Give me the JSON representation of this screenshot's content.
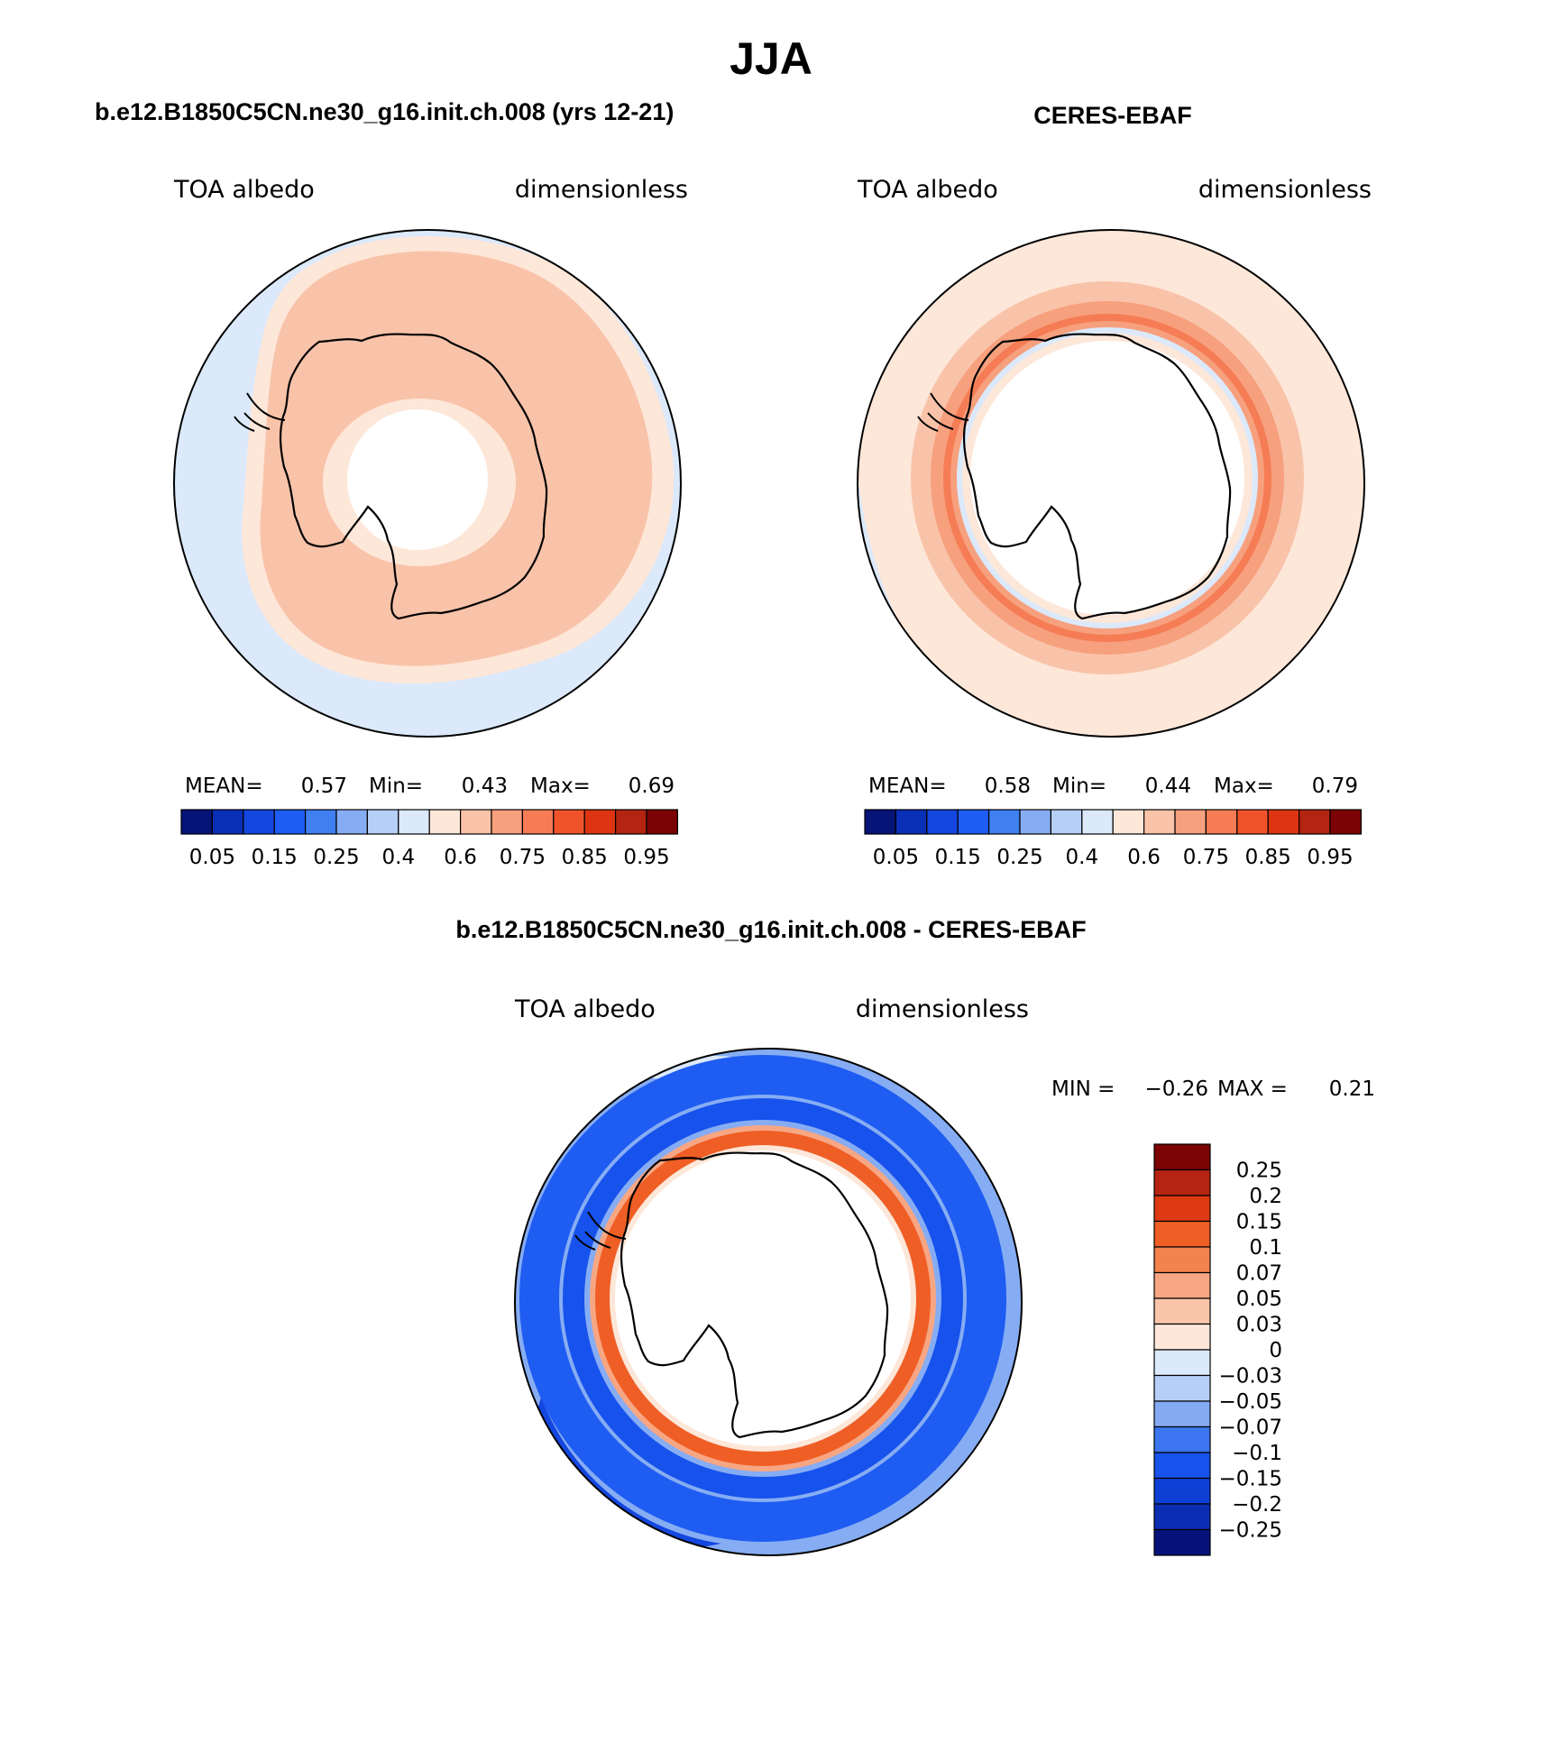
{
  "main_title": "JJA",
  "colors": {
    "seq": [
      "#061377",
      "#0a2fb7",
      "#1446e0",
      "#1e5cf2",
      "#3f7ff0",
      "#86adf3",
      "#b6cff6",
      "#dbe9fb",
      "#fde7d9",
      "#f9c3a9",
      "#f7a07e",
      "#f57c54",
      "#f0532a",
      "#de3411",
      "#b32510",
      "#7b0305"
    ],
    "div": [
      "#06127a",
      "#0a2db3",
      "#0f40d6",
      "#1752ec",
      "#3c76f0",
      "#84aaf2",
      "#b6cff6",
      "#dbe9fb",
      "#fde7d9",
      "#f9c5ab",
      "#f7a683",
      "#f3834d",
      "#ef5e25",
      "#dd3a11",
      "#b52410",
      "#7d0404"
    ]
  },
  "panels": {
    "model": {
      "title": "b.e12.B1850C5CN.ne30_g16.init.ch.008 (yrs 12-21)",
      "left_label": "TOA albedo",
      "right_label": "dimensionless",
      "stats": {
        "mean_label": "MEAN=",
        "mean": "0.57",
        "min_label": "Min=",
        "min": "0.43",
        "max_label": "Max=",
        "max": "0.69"
      },
      "colorbar_ticks": [
        "0.05",
        "0.15",
        "0.25",
        "0.4",
        "0.6",
        "0.75",
        "0.85",
        "0.95"
      ]
    },
    "obs": {
      "title": "CERES-EBAF",
      "left_label": "TOA albedo",
      "right_label": "dimensionless",
      "stats": {
        "mean_label": "MEAN=",
        "mean": "0.58",
        "min_label": "Min=",
        "min": "0.44",
        "max_label": "Max=",
        "max": "0.79"
      },
      "colorbar_ticks": [
        "0.05",
        "0.15",
        "0.25",
        "0.4",
        "0.6",
        "0.75",
        "0.85",
        "0.95"
      ]
    },
    "diff": {
      "title": "b.e12.B1850C5CN.ne30_g16.init.ch.008 - CERES-EBAF",
      "left_label": "TOA albedo",
      "right_label": "dimensionless",
      "stats": {
        "min_label": "MIN =",
        "min": "−0.26",
        "max_label": "MAX =",
        "max": "0.21"
      },
      "colorbar_ticks": [
        "0.25",
        "0.2",
        "0.15",
        "0.1",
        "0.07",
        "0.05",
        "0.03",
        "0",
        "−0.03",
        "−0.05",
        "−0.07",
        "−0.1",
        "−0.15",
        "−0.2",
        "−0.25"
      ]
    }
  }
}
